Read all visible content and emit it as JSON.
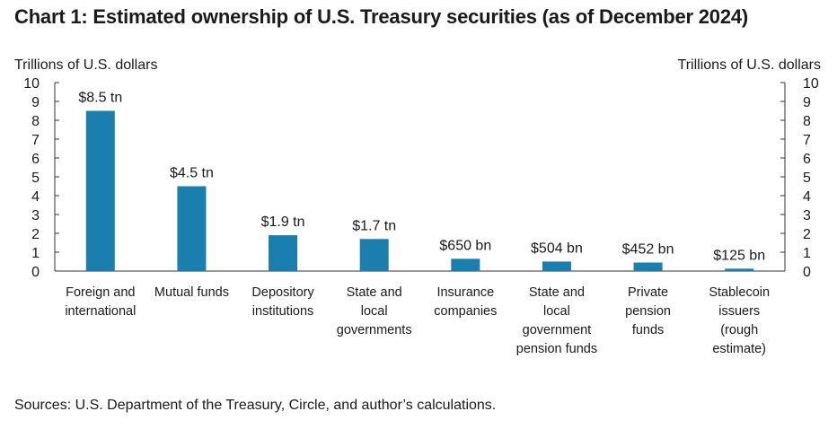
{
  "chart_data": {
    "type": "bar",
    "title": "Chart 1: Estimated ownership of U.S. Treasury securities (as of December 2024)",
    "ylabel_left": "Trillions of U.S. dollars",
    "ylabel_right": "Trillions of U.S. dollars",
    "ylim": [
      0,
      10
    ],
    "yticks": [
      0,
      1,
      2,
      3,
      4,
      5,
      6,
      7,
      8,
      9,
      10
    ],
    "categories": [
      [
        "Foreign and",
        "international"
      ],
      [
        "Mutual funds"
      ],
      [
        "Depository",
        "institutions"
      ],
      [
        "State and",
        "local",
        "governments"
      ],
      [
        "Insurance",
        "companies"
      ],
      [
        "State and",
        "local",
        "government",
        "pension funds"
      ],
      [
        "Private",
        "pension",
        "funds"
      ],
      [
        "Stablecoin",
        "issuers",
        "(rough",
        "estimate)"
      ]
    ],
    "values": [
      8.5,
      4.5,
      1.9,
      1.7,
      0.65,
      0.504,
      0.452,
      0.125
    ],
    "data_labels": [
      "$8.5 tn",
      "$4.5 tn",
      "$1.9 tn",
      "$1.7 tn",
      "$650 bn",
      "$504 bn",
      "$452 bn",
      "$125 bn"
    ],
    "bar_color": "#1a7fae",
    "source": "Sources: U.S. Department of the Treasury, Circle, and author’s calculations."
  }
}
